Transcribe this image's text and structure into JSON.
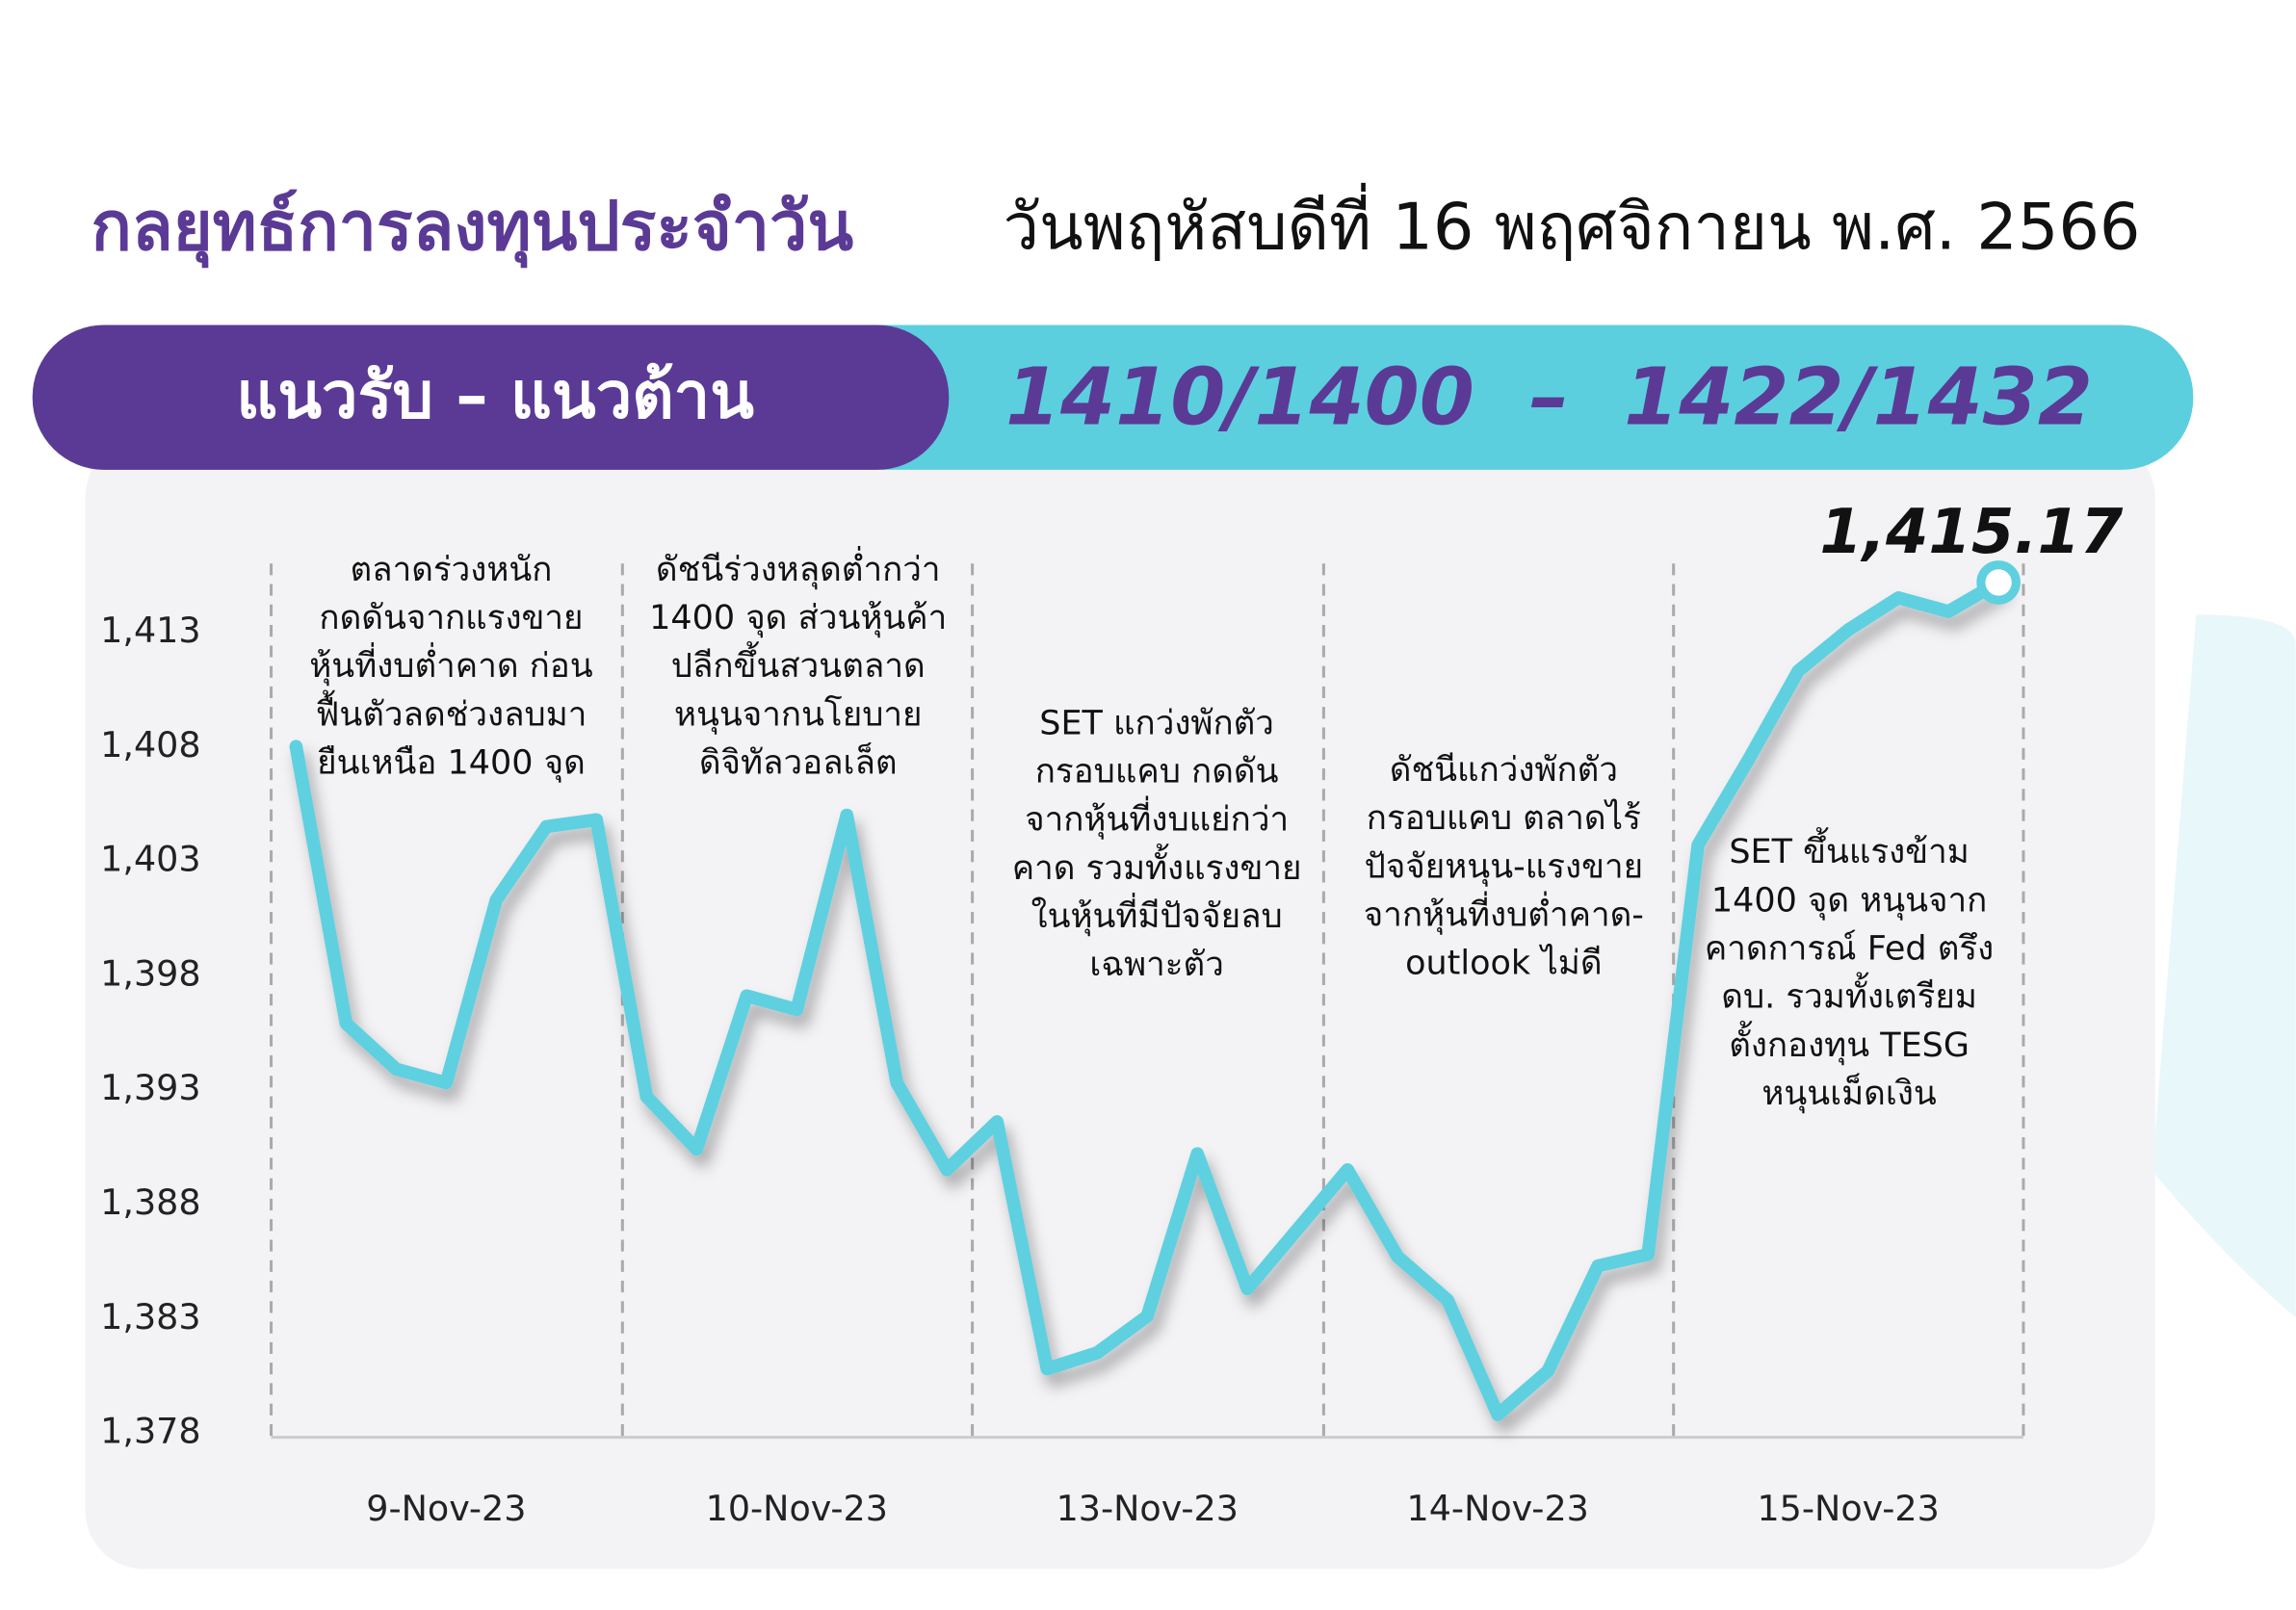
{
  "header": {
    "title": "กลยุทธ์การลงทุนประจำวัน",
    "date": "วันพฤหัสบดีที่ 16 พฤศจิกายน พ.ศ. 2566",
    "band_label": "แนวรับ – แนวต้าน",
    "band_value": "1410/1400  –  1422/1432"
  },
  "chart_data": {
    "type": "line",
    "categories": [
      null,
      null,
      null,
      "9-Nov-23",
      null,
      null,
      null,
      null,
      null,
      null,
      "10-Nov-23",
      null,
      null,
      null,
      null,
      null,
      null,
      "13-Nov-23",
      null,
      null,
      null,
      null,
      null,
      null,
      "14-Nov-23",
      null,
      null,
      null,
      null,
      null,
      null,
      "15-Nov-23",
      null,
      null,
      null
    ],
    "series": [
      {
        "name": "SET",
        "color": "#5fd0e0",
        "values": [
          1408.0,
          1395.9,
          1393.9,
          1393.3,
          1401.3,
          1404.5,
          1404.8,
          1392.7,
          1390.4,
          1397.1,
          1396.5,
          1405.0,
          1393.3,
          1389.5,
          1391.6,
          1380.8,
          1381.5,
          1383.1,
          1390.2,
          1384.3,
          1386.9,
          1389.5,
          1385.7,
          1383.8,
          1378.8,
          1380.7,
          1385.3,
          1385.8,
          1403.7,
          1407.4,
          1411.3,
          1413.1,
          1414.5,
          1413.9,
          1415.17
        ],
        "value_labels": [
          null,
          null,
          null,
          null,
          null,
          null,
          null,
          null,
          null,
          null,
          null,
          null,
          null,
          null,
          null,
          null,
          null,
          null,
          null,
          null,
          null,
          null,
          null,
          null,
          null,
          null,
          null,
          null,
          null,
          null,
          null,
          null,
          null,
          null,
          "1,415.17"
        ]
      }
    ],
    "ylim": [
      1378,
      1416
    ],
    "yticks": [
      {
        "value": 1378,
        "label": "1,378"
      },
      {
        "value": 1383,
        "label": "1,383"
      },
      {
        "value": 1388,
        "label": "1,388"
      },
      {
        "value": 1393,
        "label": "1,393"
      },
      {
        "value": 1398,
        "label": "1,398"
      },
      {
        "value": 1403,
        "label": "1,403"
      },
      {
        "value": 1408,
        "label": "1,408"
      },
      {
        "value": 1413,
        "label": "1,413"
      }
    ],
    "grid": false,
    "annotations": [
      [
        "ตลาดร่วงหนัก",
        "กดดันจากแรงขาย",
        "หุ้นที่งบต่ำคาด ก่อน",
        "ฟื้นตัวลดช่วงลบมา",
        "ยืนเหนือ 1400 จุด"
      ],
      [
        "ดัชนีร่วงหลุดต่ำกว่า",
        "1400 จุด ส่วนหุ้นค้า",
        "ปลีกขึ้นสวนตลาด",
        "หนุนจากนโยบาย",
        "ดิจิทัลวอลเล็ต"
      ],
      [
        "SET แกว่งพักตัว",
        "กรอบแคบ กดดัน",
        "จากหุ้นที่งบแย่กว่า",
        "คาด รวมทั้งแรงขาย",
        "ในหุ้นที่มีปัจจัยลบ",
        "เฉพาะตัว"
      ],
      [
        "ดัชนีแกว่งพักตัว",
        "กรอบแคบ ตลาดไร้",
        "ปัจจัยหนุน-แรงขาย",
        "จากหุ้นที่งบต่ำคาด-",
        "outlook ไม่ดี"
      ],
      [
        "SET ขึ้นแรงข้าม",
        "1400 จุด หนุนจาก",
        "คาดการณ์ Fed ตรึง",
        "ดบ. รวมทั้งเตรียม",
        "ตั้งกองทุน TESG",
        "หนุนเม็ดเงิน"
      ]
    ]
  }
}
